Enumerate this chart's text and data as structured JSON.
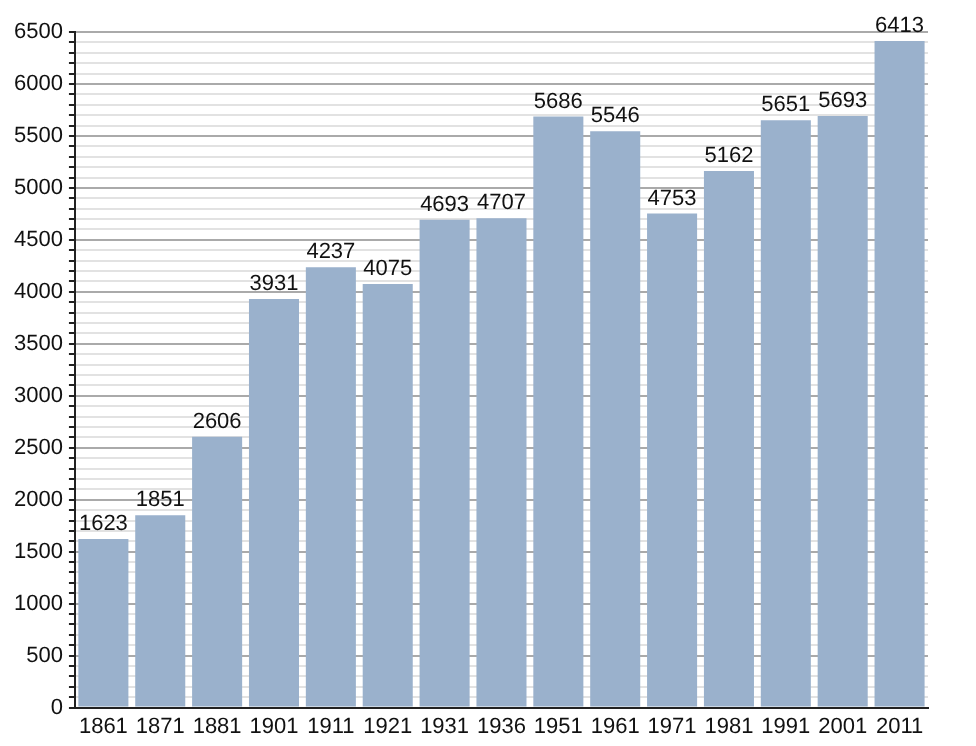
{
  "chart_data": {
    "type": "bar",
    "categories": [
      "1861",
      "1871",
      "1881",
      "1901",
      "1911",
      "1921",
      "1931",
      "1936",
      "1951",
      "1961",
      "1971",
      "1981",
      "1991",
      "2001",
      "2011"
    ],
    "values": [
      1623,
      1851,
      2606,
      3931,
      4237,
      4075,
      4693,
      4707,
      5686,
      5546,
      4753,
      5162,
      5651,
      5693,
      6413
    ],
    "color": "#9ab1cc",
    "data_labels": true,
    "grid": "y",
    "ylim": [
      0,
      6500
    ],
    "yticks": [
      0,
      {
        "value": 100,
        "label": null
      },
      {
        "value": 200,
        "label": null
      },
      {
        "value": 300,
        "label": null
      },
      {
        "value": 400,
        "label": null
      },
      500,
      {
        "value": 600,
        "label": null
      },
      {
        "value": 700,
        "label": null
      },
      {
        "value": 800,
        "label": null
      },
      {
        "value": 900,
        "label": null
      },
      1000,
      {
        "value": 1100,
        "label": null
      },
      {
        "value": 1200,
        "label": null
      },
      {
        "value": 1300,
        "label": null
      },
      {
        "value": 1400,
        "label": null
      },
      1500,
      {
        "value": 1600,
        "label": null
      },
      {
        "value": 1700,
        "label": null
      },
      {
        "value": 1800,
        "label": null
      },
      {
        "value": 1900,
        "label": null
      },
      2000,
      {
        "value": 2100,
        "label": null
      },
      {
        "value": 2200,
        "label": null
      },
      {
        "value": 2300,
        "label": null
      },
      {
        "value": 2400,
        "label": null
      },
      2500,
      {
        "value": 2600,
        "label": null
      },
      {
        "value": 2700,
        "label": null
      },
      {
        "value": 2800,
        "label": null
      },
      {
        "value": 2900,
        "label": null
      },
      3000,
      {
        "value": 3100,
        "label": null
      },
      {
        "value": 3200,
        "label": null
      },
      {
        "value": 3300,
        "label": null
      },
      {
        "value": 3400,
        "label": null
      },
      3500,
      {
        "value": 3600,
        "label": null
      },
      {
        "value": 3700,
        "label": null
      },
      {
        "value": 3800,
        "label": null
      },
      {
        "value": 3900,
        "label": null
      },
      4000,
      {
        "value": 4100,
        "label": null
      },
      {
        "value": 4200,
        "label": null
      },
      {
        "value": 4300,
        "label": null
      },
      {
        "value": 4400,
        "label": null
      },
      4500,
      {
        "value": 4600,
        "label": null
      },
      {
        "value": 4700,
        "label": null
      },
      {
        "value": 4800,
        "label": null
      },
      {
        "value": 4900,
        "label": null
      },
      5000,
      {
        "value": 5100,
        "label": null
      },
      {
        "value": 5200,
        "label": null
      },
      {
        "value": 5300,
        "label": null
      },
      {
        "value": 5400,
        "label": null
      },
      5500,
      {
        "value": 5600,
        "label": null
      },
      {
        "value": 5700,
        "label": null
      },
      {
        "value": 5800,
        "label": null
      },
      {
        "value": 5900,
        "label": null
      },
      6000,
      {
        "value": 6100,
        "label": null
      },
      {
        "value": 6200,
        "label": null
      },
      {
        "value": 6300,
        "label": null
      },
      {
        "value": 6400,
        "label": null
      },
      6500
    ]
  }
}
